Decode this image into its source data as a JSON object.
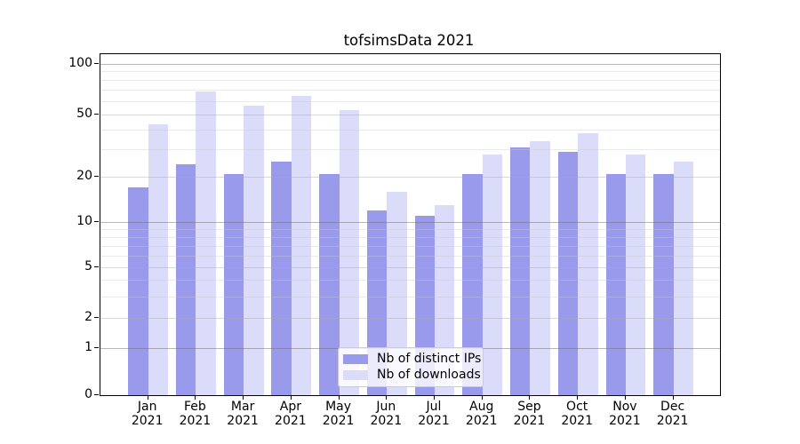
{
  "title": "tofsimsData 2021",
  "chart_data": {
    "type": "bar",
    "title": "tofsimsData 2021",
    "categories": [
      "Jan 2021",
      "Feb 2021",
      "Mar 2021",
      "Apr 2021",
      "May 2021",
      "Jun 2021",
      "Jul 2021",
      "Aug 2021",
      "Sep 2021",
      "Oct 2021",
      "Nov 2021",
      "Dec 2021"
    ],
    "month_labels": [
      "Jan",
      "Feb",
      "Mar",
      "Apr",
      "May",
      "Jun",
      "Jul",
      "Aug",
      "Sep",
      "Oct",
      "Nov",
      "Dec"
    ],
    "year_label": "2021",
    "series": [
      {
        "name": "Nb of distinct IPs",
        "color": "#9a9aed",
        "values": [
          17,
          24,
          21,
          25,
          21,
          12,
          11,
          21,
          31,
          29,
          21,
          21
        ]
      },
      {
        "name": "Nb of downloads",
        "color": "#dbdbfa",
        "values": [
          43,
          68,
          56,
          64,
          53,
          16,
          13,
          28,
          34,
          38,
          28,
          25
        ]
      }
    ],
    "xlabel": "",
    "ylabel": "",
    "y_ticks": [
      0,
      1,
      2,
      5,
      10,
      20,
      50,
      100
    ],
    "y_minor_gridlines": [
      3,
      4,
      6,
      7,
      8,
      9,
      30,
      40,
      60,
      70,
      80,
      90
    ],
    "y_major_gridlines": [
      1,
      10,
      100
    ],
    "ylim": [
      0,
      114
    ],
    "scale": "log-like (linear 0-1, logarithmic above)",
    "grid": "horizontal",
    "legend": {
      "position": "lower center inside",
      "labels": [
        "Nb of distinct IPs",
        "Nb of downloads"
      ]
    }
  },
  "colors": {
    "bar_distinct_ips": "#9a9aed",
    "bar_downloads": "#dbdbfa",
    "gridline_major": "#b3b3b3",
    "gridline_mid": "#d6d6d6",
    "gridline_minor": "#e9e9e9",
    "axis": "#000000",
    "legend_border": "#cccccc",
    "text": "#000000"
  }
}
